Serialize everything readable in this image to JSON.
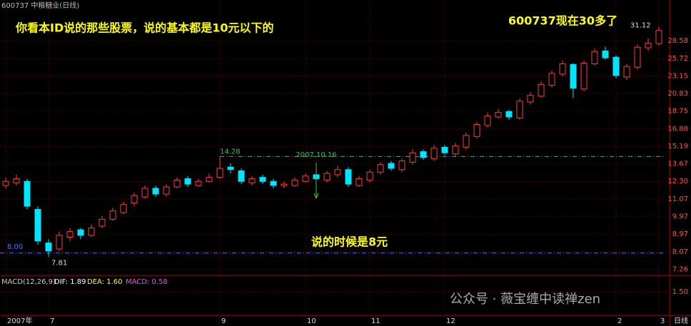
{
  "chart_data": {
    "type": "candlestick",
    "title": "600737 中粮糖业(日线)",
    "period_label": "日线",
    "log_scale": true,
    "up_color": "#ff3c3c",
    "down_color": "#00e4ff",
    "categories": [
      "2007年",
      null,
      null,
      null,
      "7",
      null,
      null,
      null,
      null,
      null,
      null,
      null,
      null,
      null,
      null,
      null,
      null,
      null,
      null,
      null,
      "9",
      null,
      null,
      null,
      null,
      null,
      null,
      null,
      "10",
      null,
      null,
      null,
      null,
      null,
      "11",
      null,
      null,
      null,
      null,
      null,
      null,
      "12",
      null,
      null,
      null,
      null,
      null,
      null,
      null,
      null,
      null,
      null,
      null,
      null,
      null,
      null,
      null,
      "2",
      null,
      null,
      null,
      "3"
    ],
    "open": [
      12.0,
      12.2,
      12.3,
      10.4,
      8.5,
      8.2,
      8.8,
      9.2,
      8.9,
      9.4,
      9.8,
      10.2,
      10.8,
      11.2,
      11.8,
      11.4,
      11.9,
      12.5,
      12.0,
      12.3,
      12.6,
      13.4,
      13.1,
      12.2,
      12.6,
      12.3,
      12.0,
      12.0,
      12.3,
      12.8,
      12.4,
      12.8,
      13.2,
      12.0,
      12.4,
      13.0,
      13.7,
      13.2,
      13.8,
      14.7,
      14.1,
      15.1,
      14.5,
      15.1,
      16.1,
      17.2,
      18.1,
      18.7,
      18.0,
      19.8,
      20.5,
      21.9,
      23.4,
      24.8,
      21.4,
      24.9,
      26.9,
      25.9,
      23.0,
      24.4,
      27.4,
      28.1
    ],
    "high": [
      12.6,
      12.8,
      12.5,
      10.6,
      8.7,
      9.1,
      9.3,
      9.3,
      9.5,
      10.0,
      10.5,
      10.9,
      11.5,
      12.0,
      12.0,
      12.1,
      12.6,
      12.7,
      12.5,
      12.9,
      14.28,
      13.7,
      13.3,
      12.7,
      12.8,
      12.5,
      12.3,
      12.6,
      12.9,
      12.9,
      13.1,
      13.5,
      13.4,
      12.7,
      13.2,
      13.8,
      13.9,
      14.1,
      14.9,
      14.9,
      15.3,
      15.3,
      15.5,
      16.5,
      17.6,
      18.6,
      19.0,
      18.9,
      20.2,
      21.0,
      22.4,
      23.9,
      25.4,
      25.0,
      25.4,
      27.3,
      27.6,
      26.2,
      24.9,
      28.0,
      29.0,
      31.12
    ],
    "low": [
      11.8,
      12.0,
      10.4,
      8.4,
      7.81,
      8.1,
      8.6,
      8.7,
      8.8,
      9.3,
      9.7,
      10.1,
      10.6,
      11.1,
      11.2,
      11.2,
      11.8,
      11.9,
      11.9,
      12.2,
      12.5,
      12.9,
      12.1,
      12.0,
      12.1,
      11.8,
      11.8,
      11.9,
      12.2,
      12.3,
      12.2,
      12.6,
      11.9,
      11.9,
      12.2,
      12.8,
      13.1,
      13.0,
      13.6,
      14.0,
      13.9,
      14.4,
      14.3,
      14.9,
      15.9,
      17.0,
      17.9,
      17.8,
      17.8,
      19.5,
      20.3,
      21.6,
      23.1,
      20.3,
      21.1,
      24.6,
      25.5,
      22.8,
      22.6,
      24.1,
      26.9,
      27.8
    ],
    "close": [
      12.3,
      12.5,
      10.6,
      8.6,
      8.1,
      8.9,
      9.1,
      8.9,
      9.3,
      9.8,
      10.3,
      10.7,
      11.3,
      11.8,
      11.4,
      11.9,
      12.4,
      12.1,
      12.3,
      12.6,
      13.3,
      13.2,
      12.3,
      12.5,
      12.3,
      12.0,
      12.1,
      12.4,
      12.7,
      12.5,
      12.9,
      13.2,
      12.1,
      12.5,
      13.0,
      13.6,
      13.3,
      13.9,
      14.6,
      14.2,
      15.0,
      14.6,
      15.2,
      16.2,
      17.3,
      18.2,
      18.6,
      18.1,
      19.9,
      20.6,
      22.0,
      23.5,
      24.9,
      21.5,
      25.0,
      26.8,
      25.8,
      23.2,
      24.5,
      27.5,
      28.2,
      30.4
    ],
    "ylim": [
      7.0,
      36.5
    ],
    "yticks": [
      7.26,
      8.07,
      8.97,
      9.97,
      11.07,
      {
        "value": 12.3,
        "label": "12.30"
      },
      13.67,
      15.19,
      16.88,
      18.75,
      20.83,
      23.15,
      25.72,
      28.58
    ],
    "reference_line": {
      "value": 8,
      "label": "8.00",
      "color": "#3c78ff"
    },
    "high_line_color": "#2ecc40",
    "annotations": [
      {
        "text": "你看本ID说的那些股票，说的基本都是10元以下的",
        "color": "#ffff00"
      },
      {
        "text": "600737现在30多了",
        "color": "#ffff00"
      },
      {
        "text": "说的时候是8元",
        "color": "#ffff00"
      },
      {
        "text": "2007.10.16",
        "color": "#2ecc40"
      }
    ],
    "macd": {
      "title": "MACD(12,26,9)",
      "dif": "DIF: 1.89",
      "dea": "DEA: 1.60",
      "macd": "MACD: 0.58",
      "ylim": [
        -1.0,
        2.2
      ],
      "yticks": [
        {
          "value": 1.5,
          "label": "1.50"
        }
      ]
    },
    "watermark": "公众号 · 薇宝缠中读禅zen"
  }
}
